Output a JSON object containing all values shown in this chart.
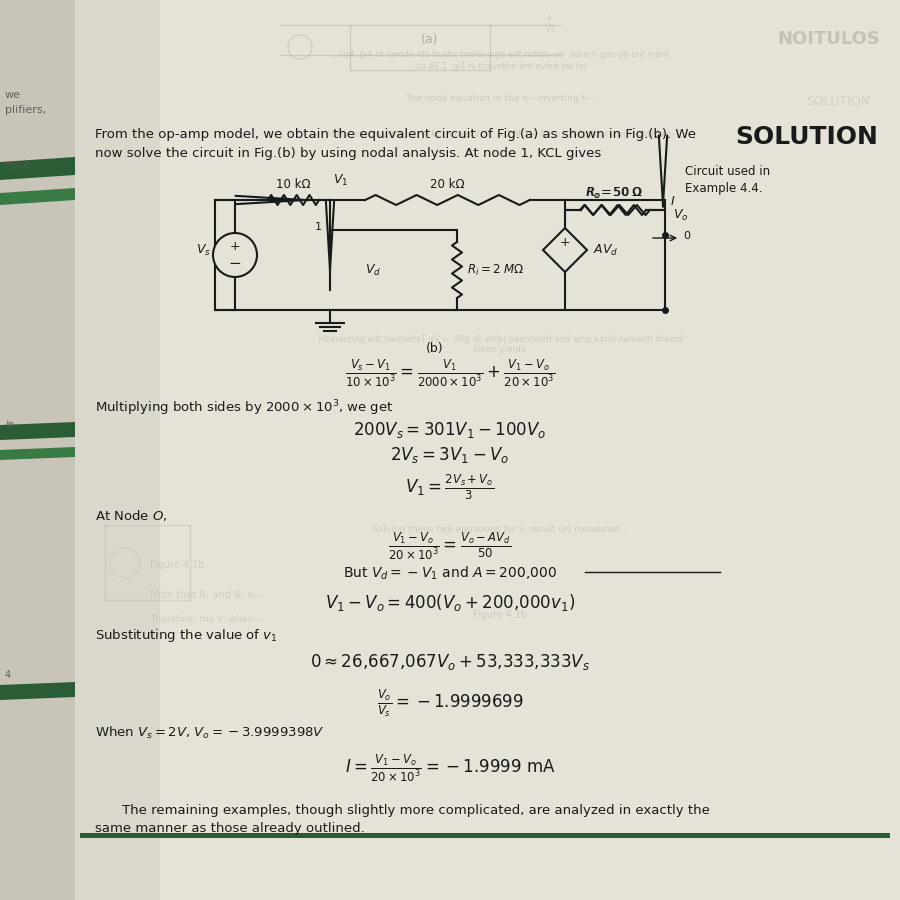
{
  "page_bg": "#e8e5dd",
  "page_bg_right": "#dedad0",
  "spine_color": "#c8c4b8",
  "green_stripe1": "#2a5c35",
  "green_stripe2": "#3a7a45",
  "text_color": "#1a1a1a",
  "ghost_color": "#b0aaa0",
  "title": "SOLUTION",
  "intro_line1": "From the op-amp model, we obtain the equivalent circuit of Fig.(a) as shown in Fig.(b). We",
  "intro_line2": "now solve the circuit in Fig.(b) by using nodal analysis. At node 1, KCL gives",
  "circuit_label": "Circuit used in\nExample 4.4.",
  "mult_text": "Multiplying both sides by $2000 \\times 10^3$, we get",
  "node_o_text": "At Node $O,$",
  "but_text": "But $V_d = -V_1$ and $A = 200{,}000$",
  "subst_text": "Substituting the value of $v_1$",
  "when_text": "When $V_s = 2V$, $V_o = -3.9999398V$",
  "footer1": "    The remaining examples, though slightly more complicated, are analyzed in exactly the",
  "footer2": "same manner as those already outlined."
}
